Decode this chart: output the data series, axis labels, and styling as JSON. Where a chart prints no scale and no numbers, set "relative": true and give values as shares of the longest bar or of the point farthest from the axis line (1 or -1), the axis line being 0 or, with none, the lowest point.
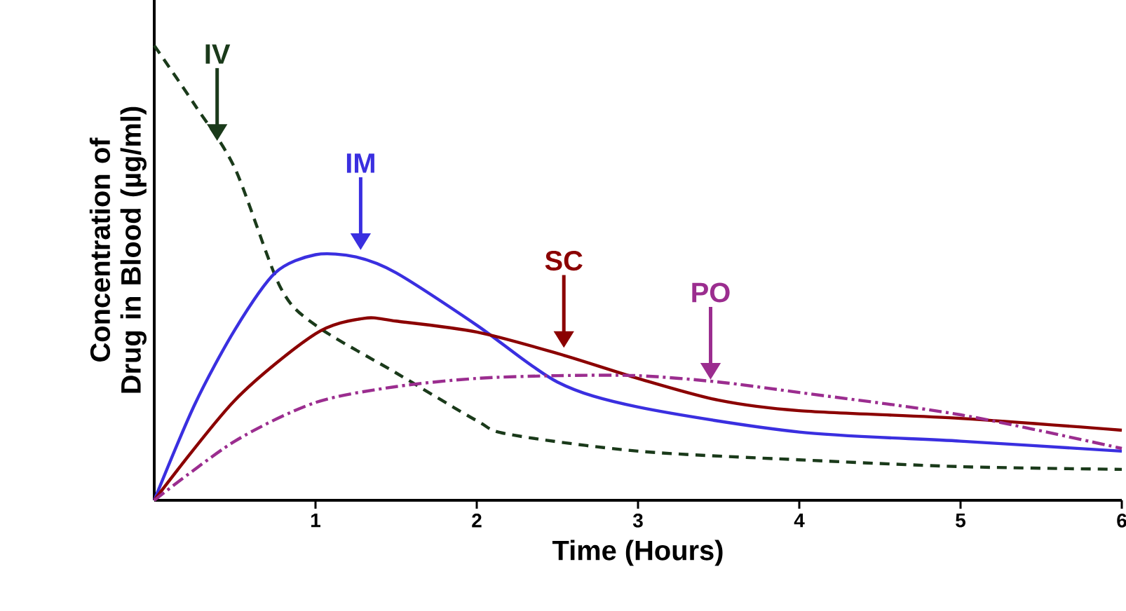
{
  "chart_data": {
    "type": "line",
    "relative": true,
    "xlabel": "Time (Hours)",
    "ylabel": "Concentration of Drug in Blood (µg/ml)",
    "xlim": [
      0,
      6
    ],
    "xticks": [
      1,
      2,
      3,
      4,
      5,
      6
    ],
    "grid": false,
    "marker": "none",
    "series": [
      {
        "color": "#1a3a1a",
        "line_style": "dashed",
        "x": [
          0,
          0.25,
          0.5,
          0.78,
          1,
          1.5,
          2,
          2.2,
          3,
          4,
          5,
          6
        ],
        "values": [
          1.0,
          0.87,
          0.73,
          0.47,
          0.385,
          0.28,
          0.175,
          0.145,
          0.108,
          0.089,
          0.074,
          0.068
        ]
      },
      {
        "color": "#3a2fe0",
        "line_style": "solid",
        "x": [
          0,
          0.25,
          0.5,
          0.75,
          1,
          1.25,
          1.5,
          2,
          2.5,
          3,
          4,
          5,
          6
        ],
        "values": [
          0,
          0.21,
          0.375,
          0.5,
          0.54,
          0.535,
          0.5,
          0.385,
          0.26,
          0.205,
          0.15,
          0.13,
          0.108
        ]
      },
      {
        "color": "#8b0000",
        "line_style": "solid",
        "x": [
          0,
          0.5,
          1,
          1.3,
          1.5,
          2,
          2.5,
          3,
          3.5,
          4,
          5,
          6
        ],
        "values": [
          0,
          0.22,
          0.366,
          0.4,
          0.394,
          0.37,
          0.323,
          0.268,
          0.22,
          0.197,
          0.18,
          0.154
        ]
      },
      {
        "color": "#9b2d8f",
        "line_style": "dashdot",
        "x": [
          0,
          0.5,
          1,
          1.5,
          2,
          2.5,
          3,
          3.5,
          4,
          5,
          6
        ],
        "values": [
          0,
          0.13,
          0.215,
          0.25,
          0.268,
          0.274,
          0.274,
          0.26,
          0.237,
          0.188,
          0.114
        ]
      }
    ],
    "annotations": [
      {
        "text": "IV",
        "x": 0.39,
        "y": 0.79
      },
      {
        "text": "IM",
        "x": 1.28,
        "y": 0.55
      },
      {
        "text": "SC",
        "x": 2.54,
        "y": 0.335
      },
      {
        "text": "PO",
        "x": 3.45,
        "y": 0.265
      }
    ]
  }
}
